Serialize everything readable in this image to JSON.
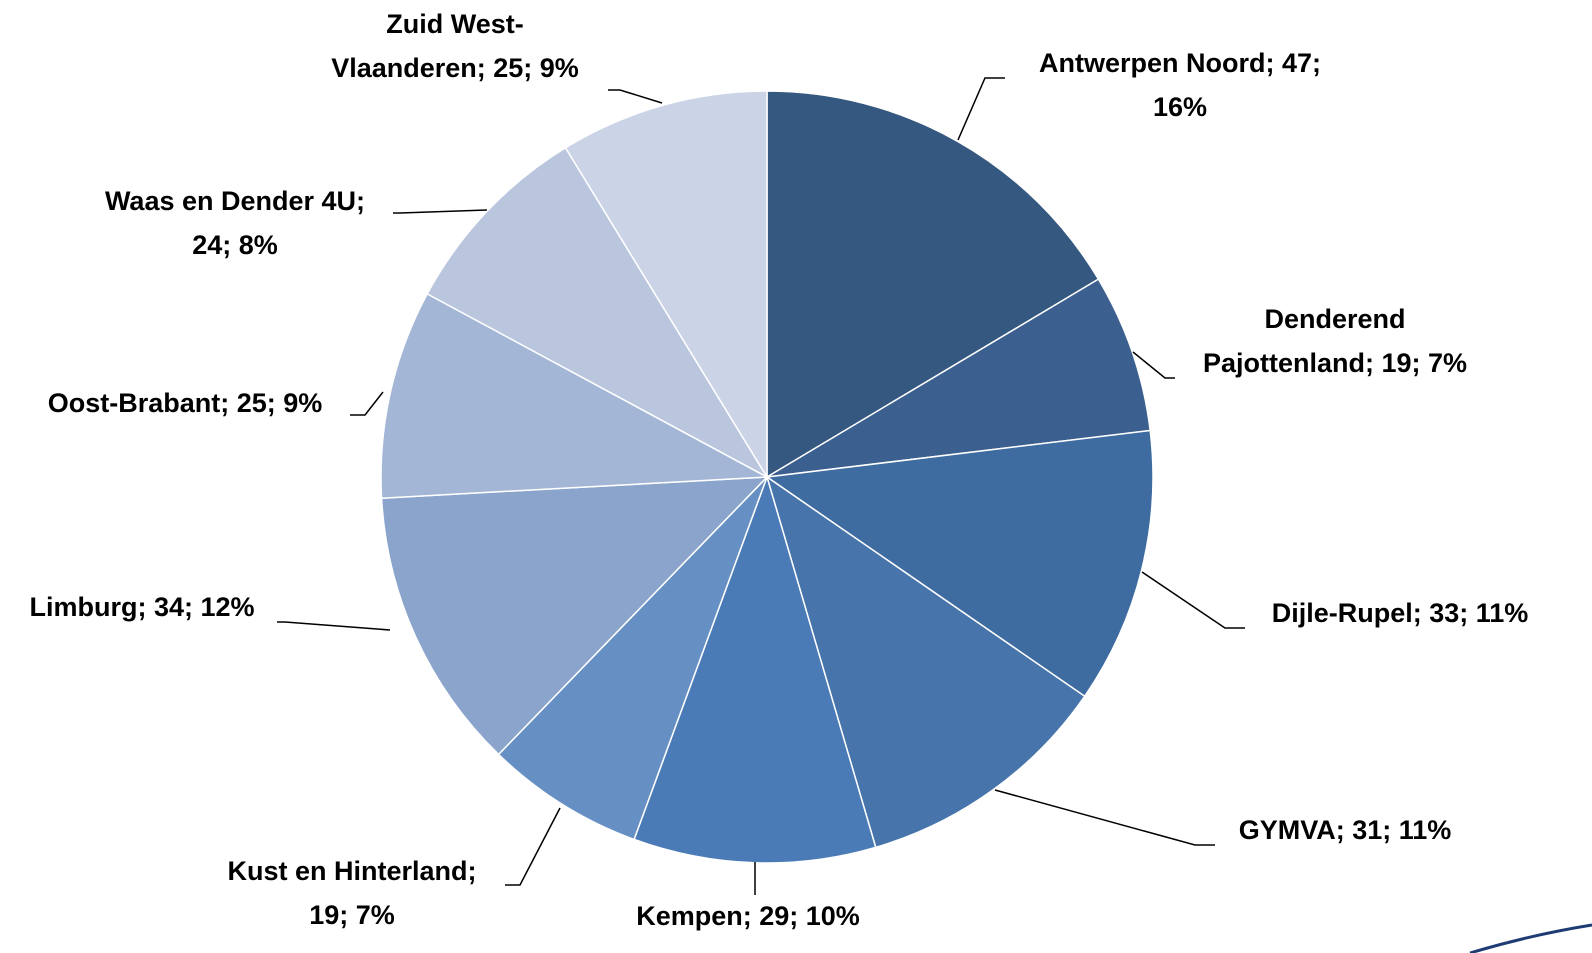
{
  "chart_data": {
    "type": "pie",
    "values": [
      47,
      19,
      33,
      31,
      29,
      19,
      34,
      25,
      24,
      25
    ],
    "value_labels": [
      "Antwerpen Noord; 47;\n16%",
      "Denderend\nPajottenland; 19; 7%",
      "Dijle-Rupel; 33; 11%",
      "GYMVA; 31; 11%",
      "Kempen; 29; 10%",
      "Kust en Hinterland;\n19; 7%",
      "Limburg; 34; 12%",
      "Oost-Brabant; 25; 9%",
      "Waas en Dender 4U;\n24; 8%",
      "Zuid West-\nVlaanderen; 25; 9%"
    ],
    "colors": [
      "#34587f",
      "#3b5f8e",
      "#3f6ca0",
      "#4674ab",
      "#4a7bb7",
      "#6690c4",
      "#8aa4cc",
      "#a3b6d6",
      "#b9c6de",
      "#cbd4e6"
    ]
  }
}
